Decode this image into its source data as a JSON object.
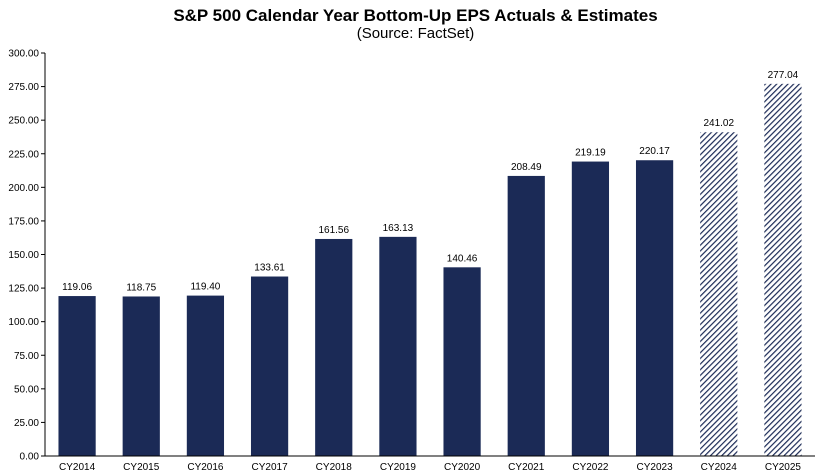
{
  "chart_data": {
    "type": "bar",
    "title": "S&P 500 Calendar Year Bottom-Up EPS Actuals & Estimates",
    "subtitle": "(Source: FactSet)",
    "categories": [
      "CY2014",
      "CY2015",
      "CY2016",
      "CY2017",
      "CY2018",
      "CY2019",
      "CY2020",
      "CY2021",
      "CY2022",
      "CY2023",
      "CY2024",
      "CY2025"
    ],
    "values": [
      119.06,
      118.75,
      119.4,
      133.61,
      161.56,
      163.13,
      140.46,
      208.49,
      219.19,
      220.17,
      241.02,
      277.04
    ],
    "value_labels": [
      "119.06",
      "118.75",
      "119.40",
      "133.61",
      "161.56",
      "163.13",
      "140.46",
      "208.49",
      "219.19",
      "220.17",
      "241.02",
      "277.04"
    ],
    "estimate": [
      false,
      false,
      false,
      false,
      false,
      false,
      false,
      false,
      false,
      false,
      true,
      true
    ],
    "ylim": [
      0,
      300
    ],
    "yticks": [
      "0.00",
      "25.00",
      "50.00",
      "75.00",
      "100.00",
      "125.00",
      "150.00",
      "175.00",
      "200.00",
      "225.00",
      "250.00",
      "275.00",
      "300.00"
    ],
    "xlabel": "",
    "ylabel": "",
    "grid": false,
    "colors": {
      "actual": "#1b2a56",
      "estimate": "#1b2a56",
      "axis": "#000000"
    }
  }
}
